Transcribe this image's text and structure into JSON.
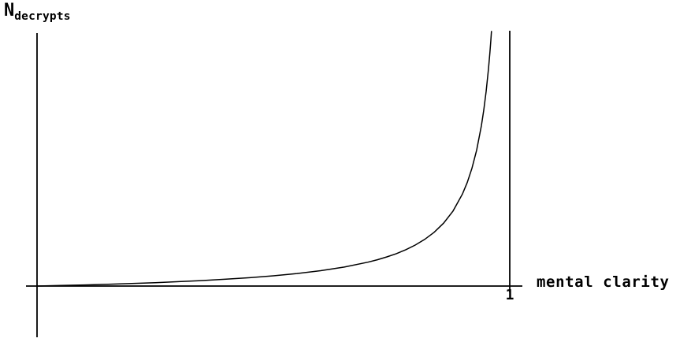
{
  "colors": {
    "ink": "#000000",
    "background": "#ffffff"
  },
  "labels": {
    "y_base": "N",
    "y_sub": "decrypts",
    "x_axis": "mental clarity",
    "tick_1": "1"
  },
  "chart_data": {
    "type": "line",
    "title": "",
    "xlabel": "mental clarity",
    "ylabel": "N_decrypts",
    "ylabel_base": "N",
    "ylabel_subscript": "decrypts",
    "x_tick_labels": [
      "1"
    ],
    "x_ticks": [
      1
    ],
    "y_tick_labels": [],
    "xlim": [
      0,
      1.08
    ],
    "ylim": [
      0,
      1.08
    ],
    "grid": false,
    "legend": "none",
    "vertical_asymptote_x": 1,
    "behavior": "N_decrypts grows slowly near 0 and diverges to infinity as mental clarity approaches 1 (shape y ~ k*x/(1-x))",
    "series": [
      {
        "name": "N_decrypts vs mental clarity",
        "function": "y = 0.0433 * x / (1 - x)",
        "points": [
          [
            0,
            0
          ],
          [
            0.05,
            0.0023
          ],
          [
            0.1,
            0.0048
          ],
          [
            0.15,
            0.0076
          ],
          [
            0.2,
            0.0108
          ],
          [
            0.25,
            0.0144
          ],
          [
            0.3,
            0.0186
          ],
          [
            0.35,
            0.0233
          ],
          [
            0.4,
            0.0289
          ],
          [
            0.45,
            0.0354
          ],
          [
            0.5,
            0.0433
          ],
          [
            0.55,
            0.0529
          ],
          [
            0.6,
            0.065
          ],
          [
            0.65,
            0.0804
          ],
          [
            0.7,
            0.101
          ],
          [
            0.72,
            0.1114
          ],
          [
            0.74,
            0.1233
          ],
          [
            0.76,
            0.1371
          ],
          [
            0.78,
            0.1535
          ],
          [
            0.8,
            0.1732
          ],
          [
            0.82,
            0.1973
          ],
          [
            0.84,
            0.2273
          ],
          [
            0.86,
            0.266
          ],
          [
            0.88,
            0.3175
          ],
          [
            0.9,
            0.3897
          ],
          [
            0.91,
            0.4378
          ],
          [
            0.92,
            0.498
          ],
          [
            0.93,
            0.5753
          ],
          [
            0.94,
            0.6784
          ],
          [
            0.945,
            0.7441
          ],
          [
            0.95,
            0.8227
          ],
          [
            0.955,
            0.919
          ],
          [
            0.958,
            0.9878
          ],
          [
            0.96,
            1.0392
          ],
          [
            0.9614,
            1.079
          ]
        ]
      }
    ]
  }
}
